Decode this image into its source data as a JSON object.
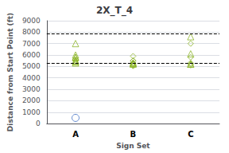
{
  "chart_data": {
    "type": "scatter",
    "title": "2X_T_4",
    "xlabel": "Sign Set",
    "ylabel": "Distance from Start Point (ft)",
    "categories": [
      "A",
      "B",
      "C"
    ],
    "series": [
      {
        "marker": "triangle",
        "color": "#8db52a",
        "values": [
          [
            5500,
            6000,
            5800,
            5800,
            5500,
            5400,
            5300,
            7000
          ],
          [
            5300,
            5250,
            5200
          ],
          [
            5200,
            5200,
            6100,
            7600
          ]
        ]
      },
      {
        "marker": "diamond",
        "color": "#8db52a",
        "values": [
          [
            5500,
            5600
          ],
          [
            5500,
            5300,
            5050,
            5150,
            5200,
            5300,
            5050,
            5500,
            5900
          ],
          [
            5200,
            5300,
            5800,
            5100,
            7000
          ]
        ]
      },
      {
        "marker": "circle",
        "color": "#4472c4",
        "values": [
          [
            500
          ],
          [],
          []
        ]
      }
    ],
    "hlines": [
      {
        "value": 7900,
        "line_style": "dashed",
        "color": "#000000"
      },
      {
        "value": 5300,
        "line_style": "dashed",
        "color": "#000000"
      }
    ],
    "ylim": [
      0,
      9000
    ],
    "yticks": [
      0,
      1000,
      2000,
      3000,
      4000,
      5000,
      6000,
      7000,
      8000,
      9000
    ],
    "grid": true
  }
}
